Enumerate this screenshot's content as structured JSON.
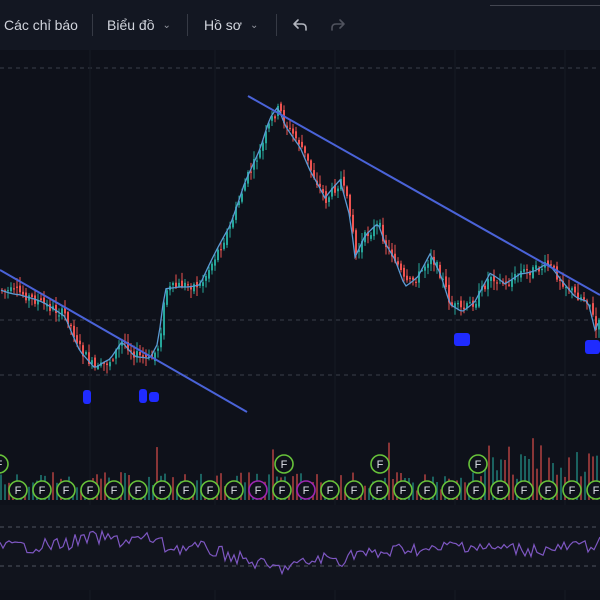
{
  "toolbar": {
    "indicators_label": "Các chỉ báo",
    "chart_label": "Biểu đồ",
    "profile_label": "Hồ sơ",
    "undo_icon": "undo-icon",
    "redo_icon": "redo-icon",
    "chevron_icon": "chevron-down-icon"
  },
  "chart": {
    "dividend_marker_letter": "F",
    "colors": {
      "background": "#0e111a",
      "up": "#26a69a",
      "down": "#ef5350",
      "ma": "#5b9bd5",
      "trendline": "#4a63d8",
      "rsi": "#7e57c2",
      "marker_border": "#67c23a",
      "marker_border_alt": "#9c27b0",
      "blue_marks": "#1f2bff"
    }
  }
}
